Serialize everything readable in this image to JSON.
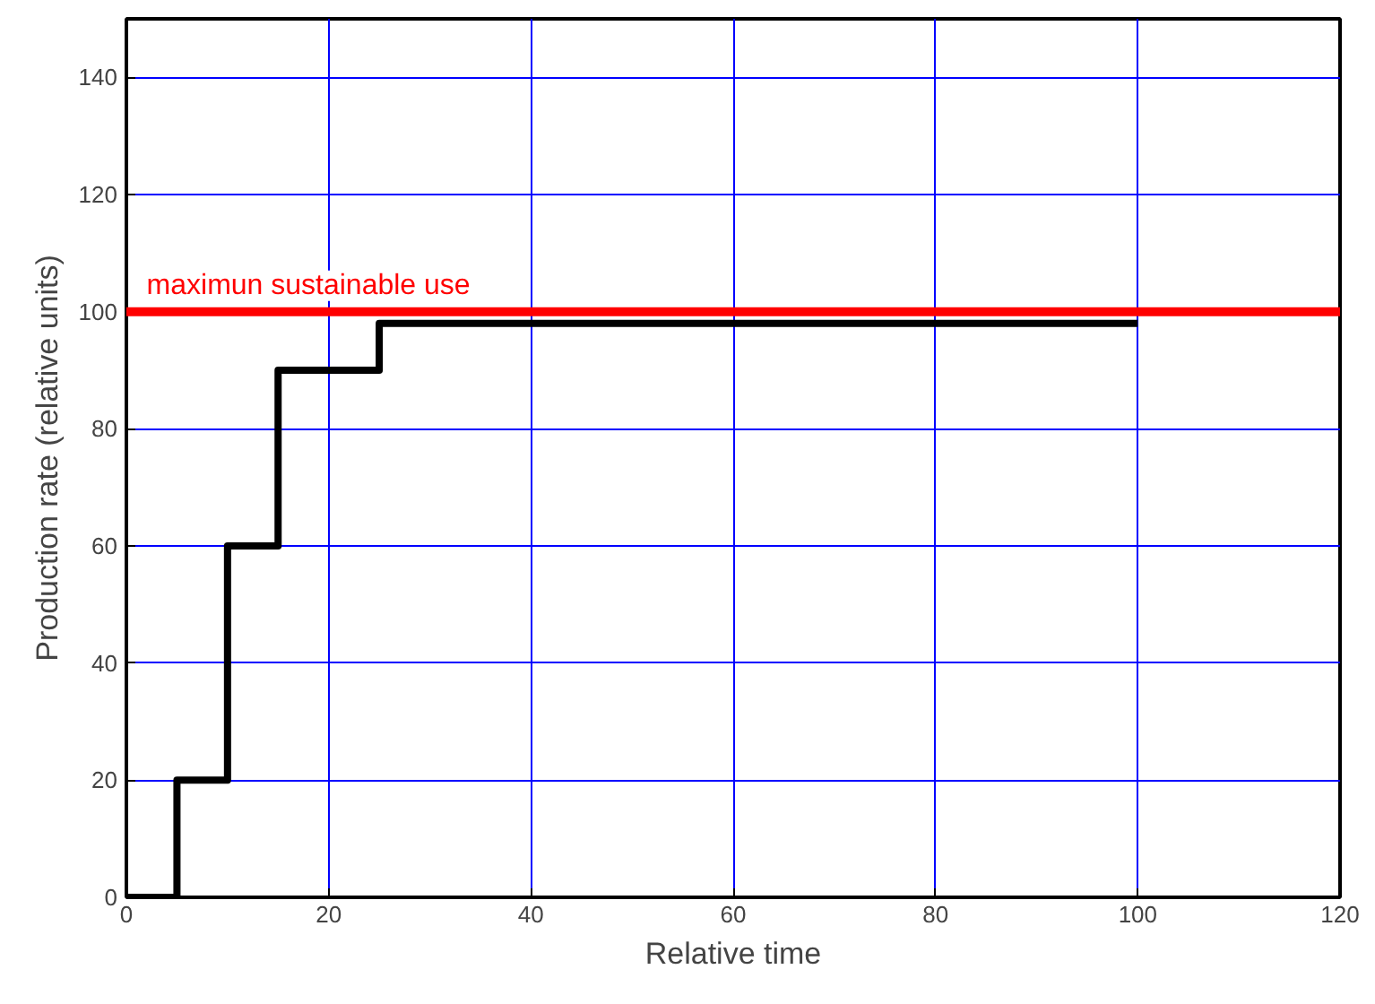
{
  "chart_data": {
    "type": "step",
    "xlabel": "Relative time",
    "ylabel": "Production rate (relative units)",
    "x": [
      0,
      5,
      10,
      15,
      25,
      100
    ],
    "series": [
      {
        "color": "#000000",
        "values": [
          0,
          20,
          60,
          90,
          98,
          98
        ]
      }
    ],
    "xlim": [
      0,
      120
    ],
    "ylim": [
      0,
      150
    ],
    "xticks": [
      0,
      20,
      40,
      60,
      80,
      100,
      120
    ],
    "yticks": [
      0,
      20,
      40,
      60,
      80,
      100,
      120,
      140
    ],
    "grid": true,
    "ref_lines": [
      {
        "axis": "y",
        "value": 100,
        "label": "maximun sustainable use",
        "color": "#ff0000"
      }
    ]
  }
}
